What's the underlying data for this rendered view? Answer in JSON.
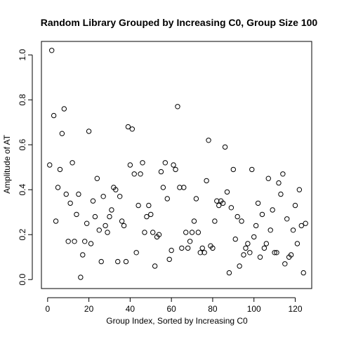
{
  "chart_data": {
    "type": "scatter",
    "title": "Random Library Grouped by Increasing C0, Group Size 100",
    "xlabel": "Group Index, Sorted by Increasing C0",
    "ylabel": "Amplitude of AT",
    "xlim": [
      -3,
      128
    ],
    "ylim": [
      -0.04,
      1.06
    ],
    "xticks": [
      0,
      20,
      40,
      60,
      80,
      100,
      120
    ],
    "yticks": [
      0.0,
      0.2,
      0.4,
      0.6,
      0.8,
      1.0
    ],
    "ytick_labels": [
      "0.0",
      "0.2",
      "0.4",
      "0.6",
      "0.8",
      "1.0"
    ],
    "grid": false,
    "marker": "open-circle",
    "series": [
      {
        "x": [
          1,
          2,
          3,
          4,
          5,
          6,
          7,
          8,
          9,
          10,
          11,
          12,
          13,
          14,
          15,
          16,
          17,
          18,
          19,
          20,
          21,
          22,
          23,
          24,
          25,
          26,
          27,
          28,
          29,
          30,
          31,
          32,
          33,
          34,
          35,
          36,
          37,
          38,
          39,
          40,
          41,
          42,
          43,
          44,
          45,
          46,
          47,
          48,
          49,
          50,
          51,
          52,
          53,
          54,
          55,
          56,
          57,
          58,
          59,
          60,
          61,
          62,
          63,
          64,
          65,
          66,
          67,
          68,
          69,
          70,
          71,
          72,
          73,
          74,
          75,
          76,
          77,
          78,
          79,
          80,
          81,
          82,
          83,
          84,
          85,
          86,
          87,
          88,
          89,
          90,
          91,
          92,
          93,
          94,
          95,
          96,
          97,
          98,
          99,
          100,
          101,
          102,
          103,
          104,
          105,
          106,
          107,
          108,
          109,
          110,
          111,
          112,
          113,
          114,
          115,
          116,
          117,
          118,
          119,
          120,
          121,
          122,
          123,
          124,
          125
        ],
        "y": [
          0.51,
          1.02,
          0.73,
          0.26,
          0.41,
          0.49,
          0.65,
          0.76,
          0.38,
          0.17,
          0.34,
          0.52,
          0.17,
          0.29,
          0.38,
          0.01,
          0.11,
          0.17,
          0.25,
          0.66,
          0.16,
          0.35,
          0.28,
          0.45,
          0.22,
          0.08,
          0.37,
          0.24,
          0.21,
          0.28,
          0.31,
          0.41,
          0.4,
          0.08,
          0.37,
          0.26,
          0.24,
          0.08,
          0.68,
          0.51,
          0.67,
          0.47,
          0.12,
          0.33,
          0.47,
          0.52,
          0.21,
          0.28,
          0.33,
          0.29,
          0.21,
          0.06,
          0.19,
          0.2,
          0.48,
          0.41,
          0.52,
          0.36,
          0.09,
          0.13,
          0.51,
          0.49,
          0.77,
          0.41,
          0.14,
          0.41,
          0.21,
          0.14,
          0.17,
          0.21,
          0.26,
          0.36,
          0.21,
          0.12,
          0.14,
          0.12,
          0.44,
          0.62,
          0.15,
          0.14,
          0.26,
          0.35,
          0.33,
          0.35,
          0.34,
          0.59,
          0.39,
          0.03,
          0.32,
          0.49,
          0.18,
          0.28,
          0.06,
          0.26,
          0.11,
          0.14,
          0.16,
          0.12,
          0.49,
          0.19,
          0.24,
          0.34,
          0.1,
          0.29,
          0.14,
          0.16,
          0.45,
          0.22,
          0.31,
          0.12,
          0.12,
          0.43,
          0.38,
          0.47,
          0.07,
          0.27,
          0.1,
          0.11,
          0.22,
          0.33,
          0.16,
          0.4,
          0.24,
          0.03,
          0.25
        ]
      }
    ]
  }
}
